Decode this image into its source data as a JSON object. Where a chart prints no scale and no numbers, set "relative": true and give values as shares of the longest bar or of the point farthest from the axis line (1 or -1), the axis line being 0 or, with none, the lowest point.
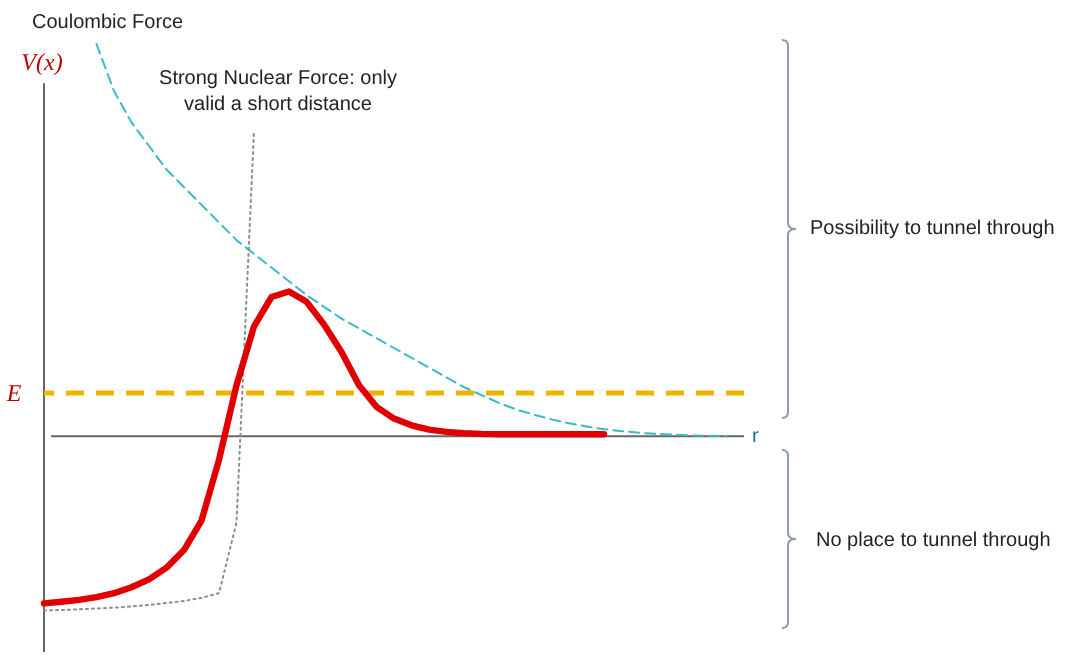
{
  "chart_data": {
    "type": "line",
    "relative": true,
    "xlabel": "r",
    "ylabel": "V(x)",
    "marker": "none",
    "categories": [
      null,
      null,
      null,
      null,
      null,
      null,
      null,
      null,
      null,
      null,
      null,
      null,
      null,
      null,
      null,
      null,
      null,
      null,
      null,
      null,
      null,
      null,
      null,
      null,
      null,
      null,
      null,
      null,
      null,
      null,
      null,
      null,
      null,
      null,
      null,
      null,
      null,
      null,
      null,
      null,
      null
    ],
    "series": [
      {
        "name": "Coulombic Force",
        "color": "#3cb8c8",
        "line_style": "dashed",
        "values": [
          null,
          null,
          null,
          1.0,
          0.88,
          0.8,
          0.74,
          0.68,
          0.635,
          0.59,
          0.545,
          0.5,
          0.465,
          0.43,
          0.395,
          0.36,
          0.33,
          0.3,
          0.275,
          0.25,
          0.225,
          0.2,
          0.175,
          0.15,
          0.125,
          0.105,
          0.085,
          0.068,
          0.055,
          0.043,
          0.033,
          0.025,
          0.018,
          0.013,
          0.009,
          0.006,
          0.004,
          0.002,
          0.001,
          0,
          null
        ]
      },
      {
        "name": "Strong Nuclear Force: only valid a short distance",
        "color": "#8c8c8c",
        "line_style": "dotted",
        "values": [
          -0.444,
          -0.443,
          -0.441,
          -0.439,
          -0.437,
          -0.434,
          -0.43,
          -0.425,
          -0.42,
          -0.412,
          -0.4,
          -0.22,
          0.78,
          null,
          null,
          null,
          null,
          null,
          null,
          null,
          null,
          null,
          null,
          null,
          null,
          null,
          null,
          null,
          null,
          null,
          null,
          null,
          null,
          null,
          null,
          null,
          null,
          null,
          null,
          null,
          null
        ]
      },
      {
        "color": "#e00000",
        "line_style": "solid",
        "values": [
          -0.426,
          -0.422,
          -0.417,
          -0.41,
          -0.4,
          -0.385,
          -0.365,
          -0.335,
          -0.29,
          -0.215,
          -0.06,
          0.13,
          0.28,
          0.355,
          0.369,
          0.343,
          0.285,
          0.215,
          0.13,
          0.075,
          0.045,
          0.028,
          0.017,
          0.011,
          0.008,
          0.006,
          0.005,
          0.005,
          0.005,
          0.005,
          0.005,
          0.005,
          0.005,
          null,
          null,
          null,
          null,
          null,
          null,
          null,
          null
        ]
      }
    ],
    "ref_lines": [
      {
        "axis": "y",
        "value": 0.11,
        "label": "E",
        "color": "#f0b400",
        "line_style": "dashed"
      }
    ],
    "annotations": [
      "Possibility to tunnel through",
      "No place to tunnel through"
    ]
  }
}
